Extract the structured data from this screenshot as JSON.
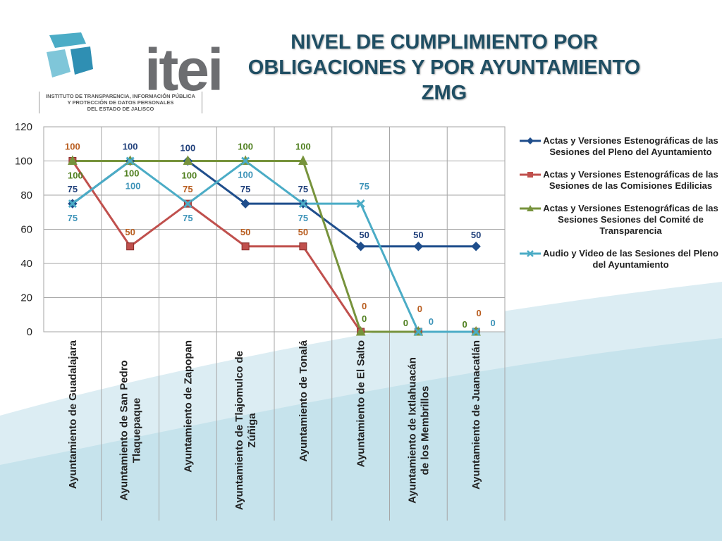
{
  "header": {
    "title_line1": "NIVEL DE CUMPLIMIENTO POR",
    "title_line2": "OBLIGACIONES Y POR AYUNTAMIENTO",
    "title_line3": "ZMG"
  },
  "logo": {
    "wordmark": "itei",
    "subtitle_line1": "INSTITUTO DE TRANSPARENCIA, INFORMACIÓN PÚBLICA",
    "subtitle_line2": "Y PROTECCIÓN DE DATOS PERSONALES",
    "subtitle_line3": "DEL ESTADO DE JALISCO"
  },
  "chart_data": {
    "type": "line",
    "title": "NIVEL DE CUMPLIMIENTO POR OBLIGACIONES Y POR AYUNTAMIENTO ZMG",
    "categories": [
      "Ayuntamiento de Guadalajara",
      "Ayuntamiento de San Pedro Tlaquepaque",
      "Ayuntamiento de Zapopan",
      "Ayuntamiento de Tlajomulco de Zúñiga",
      "Ayuntamiento de Tonalá",
      "Ayuntamiento de El Salto",
      "Ayuntamiento de Ixtlahuacán de los Membrillos",
      "Ayuntamiento de Juanacatlán"
    ],
    "category_lines": [
      [
        "Ayuntamiento de Guadalajara"
      ],
      [
        "Ayuntamiento de San Pedro",
        "Tlaquepaque"
      ],
      [
        "Ayuntamiento de Zapopan"
      ],
      [
        "Ayuntamiento de Tlajomulco de",
        "Zúñiga"
      ],
      [
        "Ayuntamiento de Tonalá"
      ],
      [
        "Ayuntamiento de El Salto"
      ],
      [
        "Ayuntamiento de Ixtlahuacán",
        "de los Membrillos"
      ],
      [
        "Ayuntamiento de Juanacatlán"
      ]
    ],
    "yticks": [
      "0",
      "20",
      "40",
      "60",
      "80",
      "100",
      "120"
    ],
    "ylim": [
      0,
      120
    ],
    "grid": true,
    "legend_position": "right",
    "series": [
      {
        "name": "Actas y Versiones Estenográficas de las Sesiones del Pleno del Ayuntamiento",
        "values": [
          75,
          100,
          100,
          75,
          75,
          50,
          50,
          50
        ],
        "color": "#1f4e8c",
        "marker": "diamond"
      },
      {
        "name": "Actas y Versiones Estenográficas de las Sesiones de las Comisiones Edilicias",
        "values": [
          100,
          50,
          75,
          50,
          50,
          0,
          0,
          0
        ],
        "color": "#c0504d",
        "marker": "square"
      },
      {
        "name": "Actas y Versiones Estenográficas de las Sesiones Sesiones del Comité de Transparencia",
        "values": [
          100,
          100,
          100,
          100,
          100,
          0,
          0,
          0
        ],
        "color": "#77933c",
        "marker": "triangle"
      },
      {
        "name": "Audio y Video de las Sesiones del Pleno del Ayuntamiento",
        "values": [
          75,
          100,
          75,
          100,
          75,
          75,
          0,
          0
        ],
        "color": "#4bacc6",
        "marker": "x"
      }
    ],
    "label_colors": [
      "#1f3f7a",
      "#b85c1e",
      "#4f7f1f",
      "#3d93b8"
    ]
  }
}
